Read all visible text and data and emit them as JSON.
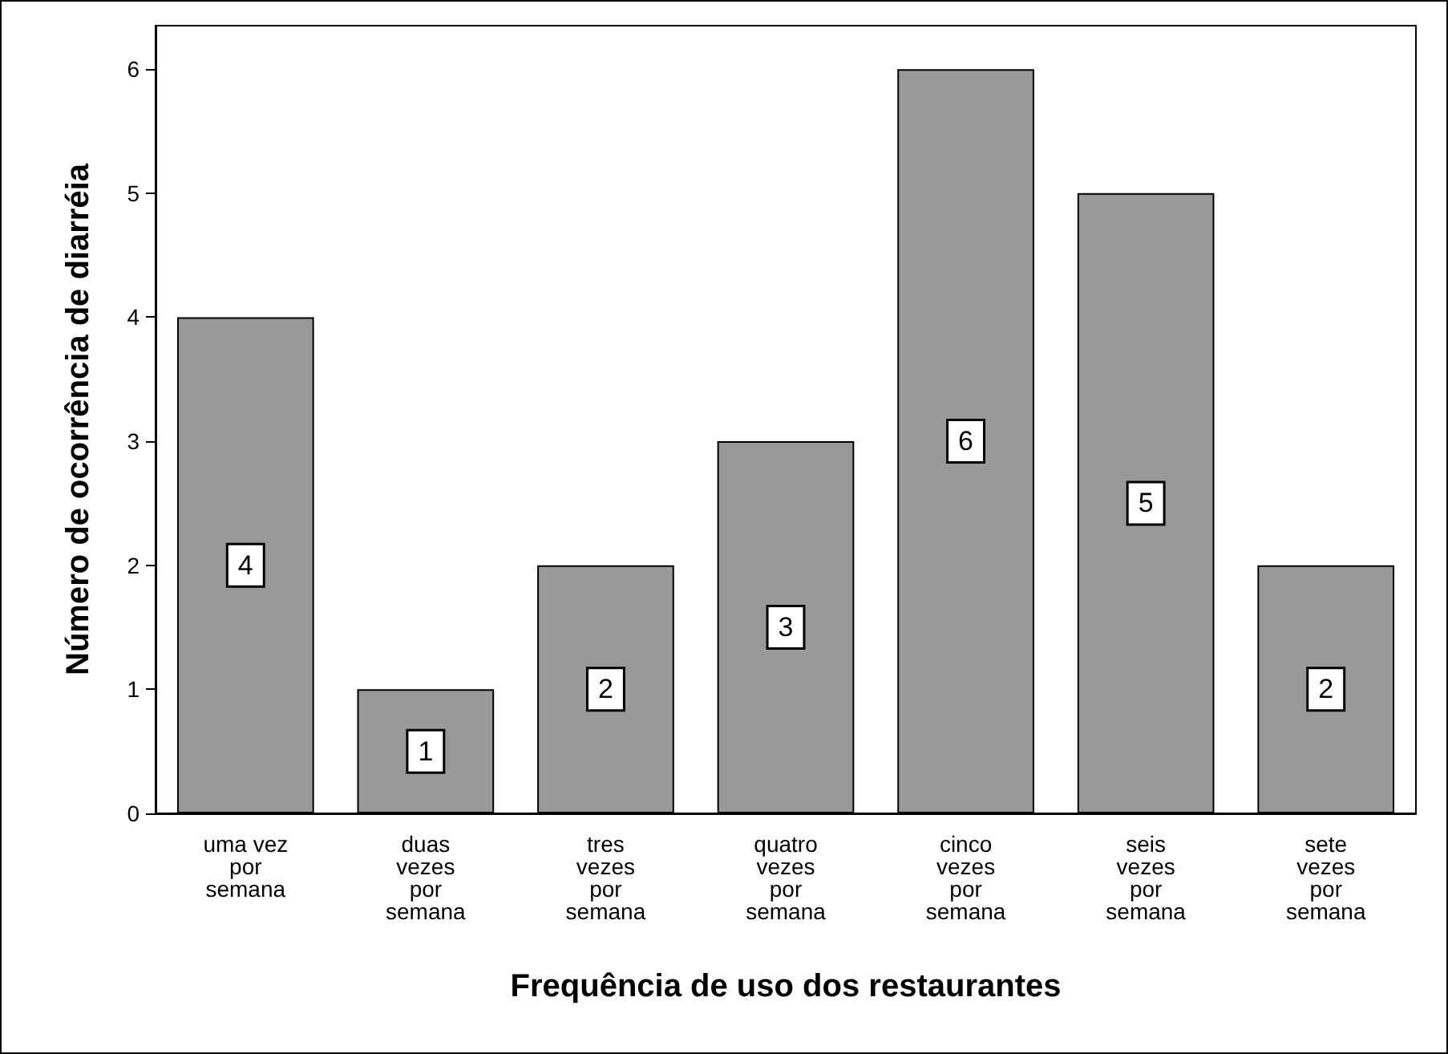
{
  "chart_data": {
    "type": "bar",
    "xlabel": "Frequência de uso dos restaurantes",
    "ylabel": "Número de ocorrência de diarréia",
    "categories": [
      "uma vez\npor\nsemana",
      "duas\nvezes\npor\nsemana",
      "tres\nvezes\npor\nsemana",
      "quatro\nvezes\npor\nsemana",
      "cinco\nvezes\npor\nsemana",
      "seis\nvezes\npor\nsemana",
      "sete\nvezes\npor\nsemana"
    ],
    "values": [
      4,
      1,
      2,
      3,
      6,
      5,
      2
    ],
    "color": "#999999",
    "ylim": [
      0,
      6.35
    ],
    "yticks": [
      0,
      1,
      2,
      3,
      4,
      5,
      6
    ],
    "grid": false,
    "data_labels": true
  }
}
